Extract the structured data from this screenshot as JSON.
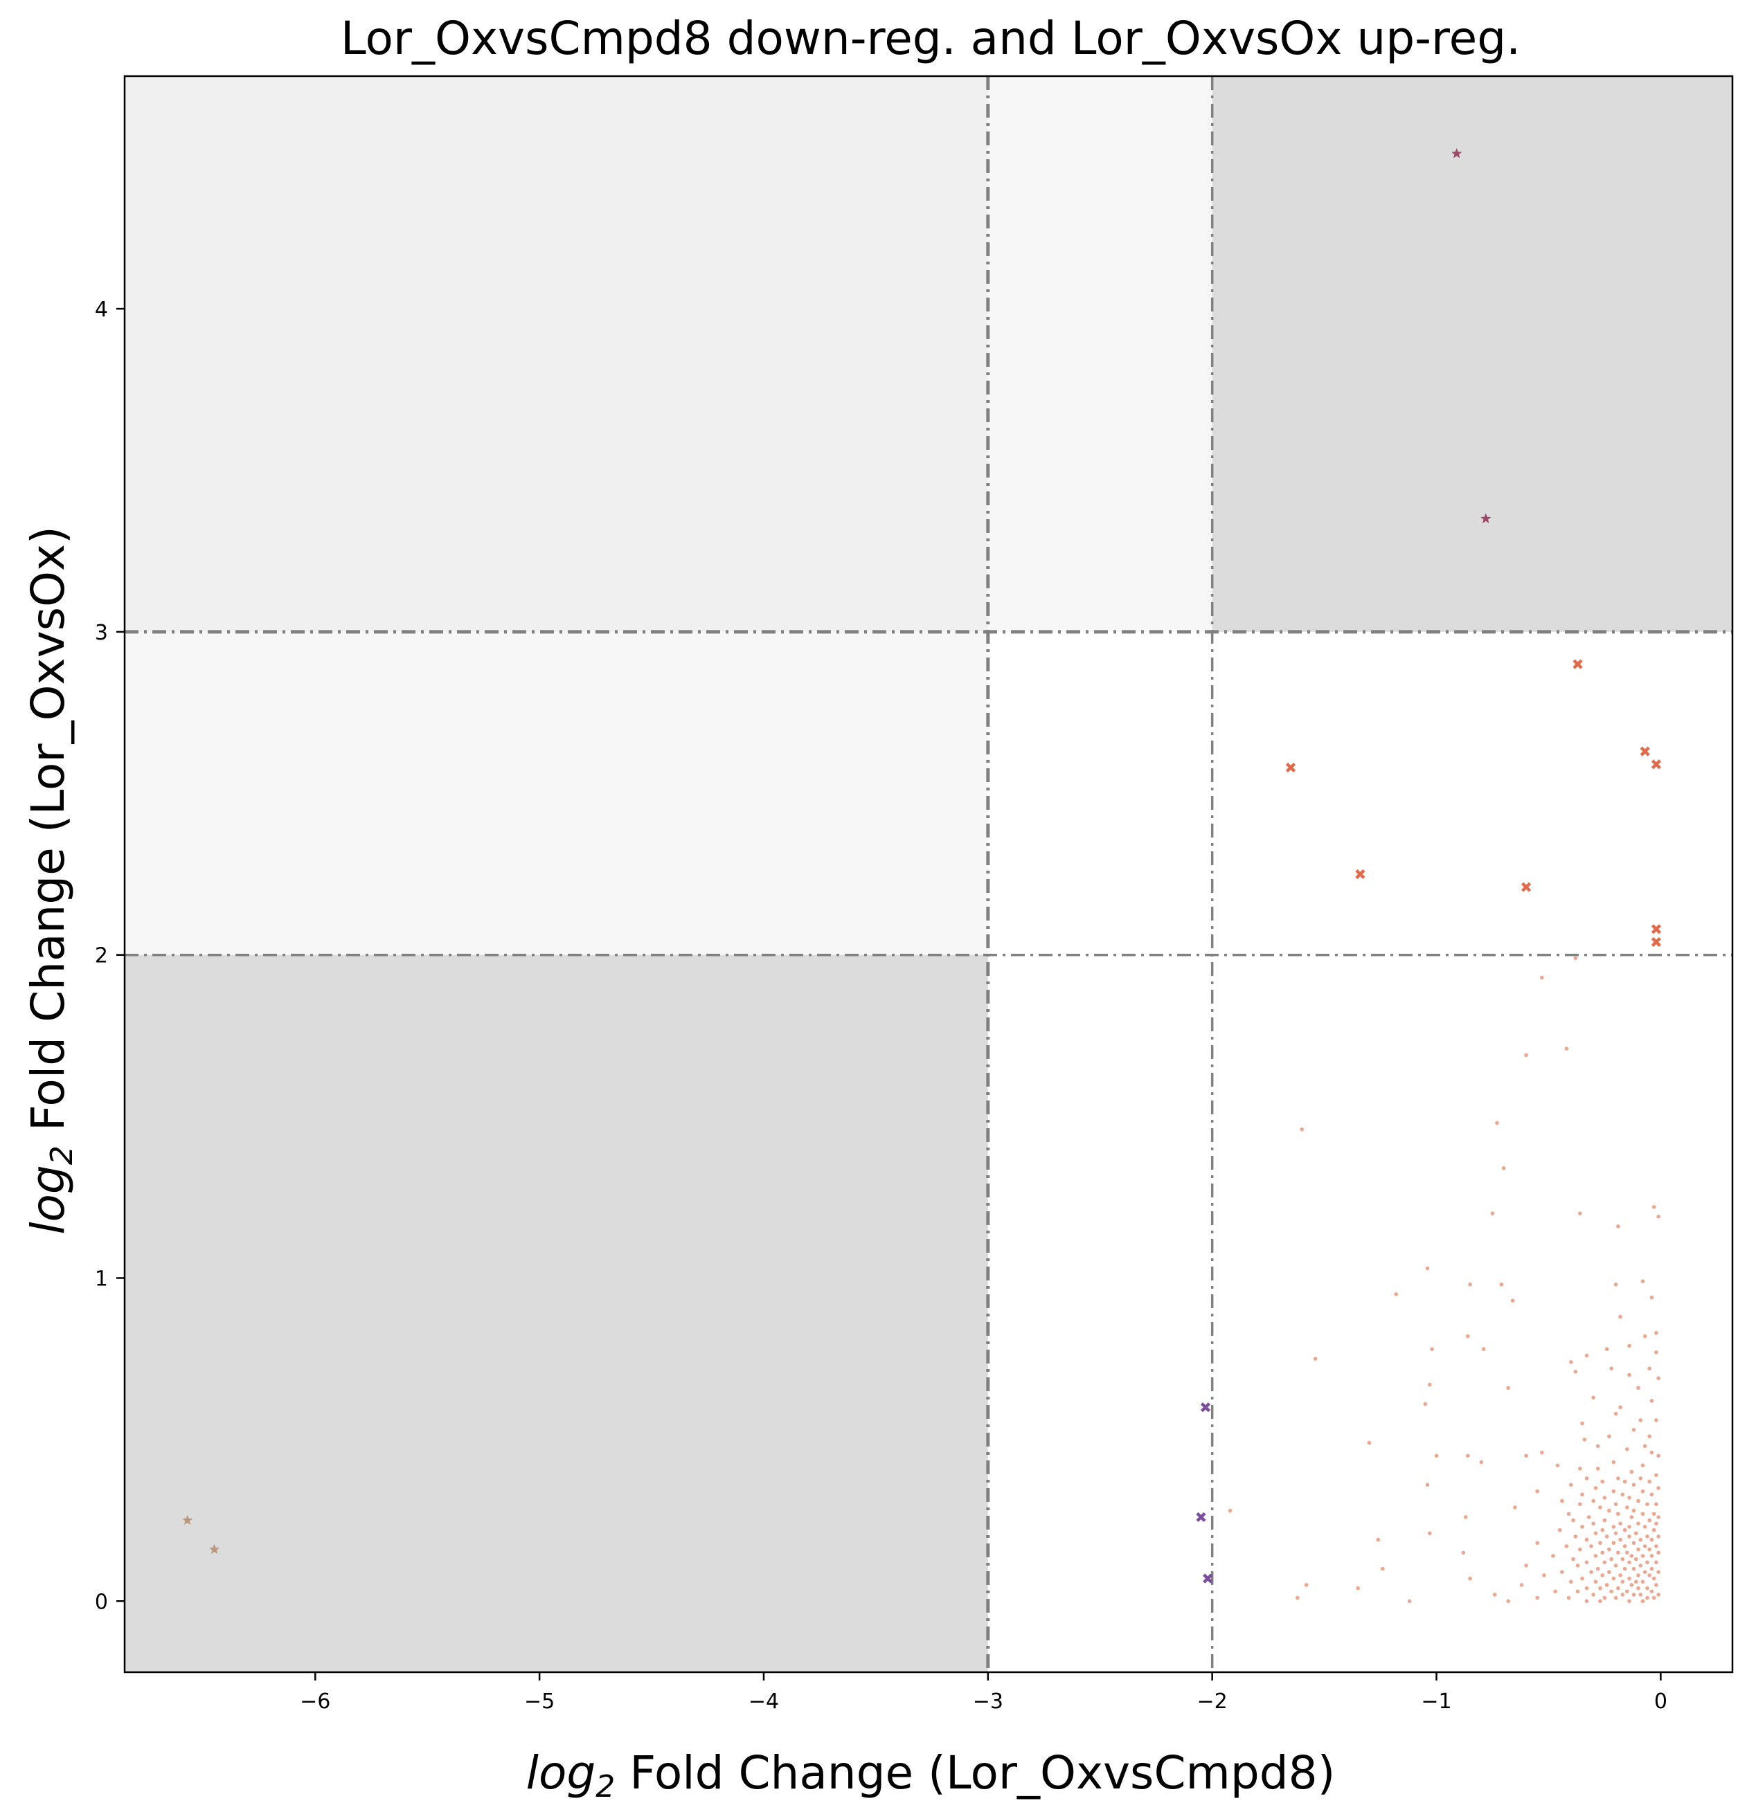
{
  "chart_data": {
    "type": "scatter",
    "title": "Lor_OxvsCmpd8 down-reg. and Lor_OxvsOx up-reg.",
    "xlabel": {
      "italic": "log",
      "sub": "2",
      "rest": " Fold Change (Lor_OxvsCmpd8)"
    },
    "ylabel": {
      "italic": "log",
      "sub": "2",
      "rest": " Fold Change (Lor_OxvsOx)"
    },
    "xlim": [
      -6.85,
      0.32
    ],
    "ylim": [
      -0.22,
      4.72
    ],
    "xticks": [
      -6,
      -5,
      -4,
      -3,
      -2,
      -1,
      0
    ],
    "xtick_labels": [
      "−6",
      "−5",
      "−4",
      "−3",
      "−2",
      "−1",
      "0"
    ],
    "yticks": [
      0,
      1,
      2,
      3,
      4
    ],
    "ytick_labels": [
      "0",
      "1",
      "2",
      "3",
      "4"
    ],
    "thresholds": {
      "x": [
        -3,
        -2
      ],
      "y": [
        2,
        3
      ]
    },
    "regions": [
      {
        "x": [
          -6.85,
          -3
        ],
        "y": [
          3,
          4.72
        ],
        "color": "#f0f0f0"
      },
      {
        "x": [
          -3,
          -2
        ],
        "y": [
          3,
          4.72
        ],
        "color": "#f7f7f7"
      },
      {
        "x": [
          -2,
          0.32
        ],
        "y": [
          3,
          4.72
        ],
        "color": "#dcdcdc"
      },
      {
        "x": [
          -6.85,
          -3
        ],
        "y": [
          2,
          3
        ],
        "color": "#f7f7f7"
      },
      {
        "x": [
          -6.85,
          -3
        ],
        "y": [
          -0.22,
          2
        ],
        "color": "#dcdcdc"
      }
    ],
    "grid": false,
    "series": [
      {
        "marker": "star",
        "color": "#9c4868",
        "points": [
          [
            -0.91,
            4.48
          ],
          [
            -0.78,
            3.35
          ]
        ]
      },
      {
        "marker": "x",
        "color": "#e2694a",
        "points": [
          [
            -0.37,
            2.9
          ],
          [
            -1.65,
            2.58
          ],
          [
            -0.07,
            2.63
          ],
          [
            -0.02,
            2.59
          ],
          [
            -1.34,
            2.25
          ],
          [
            -0.6,
            2.21
          ],
          [
            -0.02,
            2.08
          ],
          [
            -0.02,
            2.04
          ]
        ]
      },
      {
        "marker": "x",
        "color": "#7a4e9c",
        "points": [
          [
            -2.03,
            0.6
          ],
          [
            -2.05,
            0.26
          ],
          [
            -2.02,
            0.07
          ]
        ]
      },
      {
        "marker": "star",
        "color": "#b89880",
        "points": [
          [
            -6.57,
            0.25
          ],
          [
            -6.45,
            0.16
          ]
        ]
      },
      {
        "marker": "dot",
        "color": "#e58a6c",
        "points": [
          [
            -0.38,
            1.99
          ],
          [
            -0.53,
            1.93
          ],
          [
            -0.42,
            1.71
          ],
          [
            -0.6,
            1.69
          ],
          [
            -1.6,
            1.46
          ],
          [
            -0.73,
            1.48
          ],
          [
            -0.7,
            1.34
          ],
          [
            -0.75,
            1.2
          ],
          [
            -0.36,
            1.2
          ],
          [
            -0.03,
            1.22
          ],
          [
            -0.01,
            1.19
          ],
          [
            -0.19,
            1.16
          ],
          [
            -1.04,
            1.03
          ],
          [
            -0.85,
            0.98
          ],
          [
            -0.71,
            0.98
          ],
          [
            -0.08,
            0.99
          ],
          [
            -0.2,
            0.98
          ],
          [
            -1.18,
            0.95
          ],
          [
            -0.66,
            0.93
          ],
          [
            -0.04,
            0.94
          ],
          [
            -0.18,
            0.88
          ],
          [
            -0.86,
            0.82
          ],
          [
            -0.07,
            0.82
          ],
          [
            -0.02,
            0.83
          ],
          [
            -1.02,
            0.78
          ],
          [
            -0.79,
            0.78
          ],
          [
            -0.14,
            0.79
          ],
          [
            -0.24,
            0.78
          ],
          [
            -0.02,
            0.77
          ],
          [
            -0.33,
            0.76
          ],
          [
            -1.54,
            0.75
          ],
          [
            -0.4,
            0.74
          ],
          [
            -0.05,
            0.72
          ],
          [
            -0.22,
            0.72
          ],
          [
            -0.38,
            0.71
          ],
          [
            -0.14,
            0.7
          ],
          [
            -0.01,
            0.69
          ],
          [
            -1.03,
            0.67
          ],
          [
            -0.1,
            0.66
          ],
          [
            -0.68,
            0.66
          ],
          [
            -0.3,
            0.63
          ],
          [
            -0.04,
            0.62
          ],
          [
            -1.05,
            0.61
          ],
          [
            -0.18,
            0.6
          ],
          [
            -0.2,
            0.58
          ],
          [
            -0.35,
            0.55
          ],
          [
            -0.09,
            0.56
          ],
          [
            -0.02,
            0.56
          ],
          [
            -0.12,
            0.53
          ],
          [
            -0.23,
            0.51
          ],
          [
            -0.05,
            0.51
          ],
          [
            -0.34,
            0.5
          ],
          [
            -1.3,
            0.49
          ],
          [
            -0.28,
            0.48
          ],
          [
            -0.07,
            0.48
          ],
          [
            -0.15,
            0.47
          ],
          [
            -0.53,
            0.46
          ],
          [
            -0.04,
            0.46
          ],
          [
            -0.01,
            0.45
          ],
          [
            -1.0,
            0.45
          ],
          [
            -0.86,
            0.45
          ],
          [
            -0.6,
            0.45
          ],
          [
            -0.8,
            0.43
          ],
          [
            -0.21,
            0.43
          ],
          [
            -0.08,
            0.42
          ],
          [
            -0.28,
            0.41
          ],
          [
            -0.36,
            0.41
          ],
          [
            -0.46,
            0.42
          ],
          [
            -0.13,
            0.4
          ],
          [
            -0.02,
            0.39
          ],
          [
            -0.19,
            0.38
          ],
          [
            -0.33,
            0.38
          ],
          [
            -0.09,
            0.38
          ],
          [
            -0.16,
            0.37
          ],
          [
            -0.26,
            0.37
          ],
          [
            -0.05,
            0.37
          ],
          [
            -1.04,
            0.36
          ],
          [
            -0.4,
            0.36
          ],
          [
            -0.12,
            0.36
          ],
          [
            -0.29,
            0.35
          ],
          [
            -0.01,
            0.35
          ],
          [
            -0.21,
            0.34
          ],
          [
            -0.55,
            0.34
          ],
          [
            -0.08,
            0.34
          ],
          [
            -0.35,
            0.33
          ],
          [
            -0.17,
            0.33
          ],
          [
            -0.04,
            0.33
          ],
          [
            -0.25,
            0.32
          ],
          [
            -0.14,
            0.32
          ],
          [
            -0.3,
            0.31
          ],
          [
            -0.44,
            0.31
          ],
          [
            -0.1,
            0.31
          ],
          [
            -0.02,
            0.3
          ],
          [
            -0.2,
            0.3
          ],
          [
            -0.36,
            0.3
          ],
          [
            -0.06,
            0.3
          ],
          [
            -0.27,
            0.29
          ],
          [
            -0.65,
            0.29
          ],
          [
            -0.15,
            0.29
          ],
          [
            -1.92,
            0.28
          ],
          [
            -0.12,
            0.28
          ],
          [
            -0.23,
            0.28
          ],
          [
            -0.41,
            0.27
          ],
          [
            -0.03,
            0.27
          ],
          [
            -0.08,
            0.27
          ],
          [
            -0.19,
            0.27
          ],
          [
            -0.32,
            0.26
          ],
          [
            -0.87,
            0.26
          ],
          [
            -0.13,
            0.26
          ],
          [
            -0.01,
            0.26
          ],
          [
            -0.25,
            0.25
          ],
          [
            -0.05,
            0.25
          ],
          [
            -0.39,
            0.25
          ],
          [
            -0.18,
            0.24
          ],
          [
            -0.1,
            0.24
          ],
          [
            -0.3,
            0.24
          ],
          [
            -0.02,
            0.24
          ],
          [
            -0.21,
            0.23
          ],
          [
            -0.14,
            0.23
          ],
          [
            -0.35,
            0.23
          ],
          [
            -0.07,
            0.23
          ],
          [
            -0.26,
            0.22
          ],
          [
            -0.45,
            0.22
          ],
          [
            -0.16,
            0.22
          ],
          [
            -0.03,
            0.22
          ],
          [
            -0.11,
            0.21
          ],
          [
            -1.03,
            0.21
          ],
          [
            -0.2,
            0.21
          ],
          [
            -0.29,
            0.21
          ],
          [
            -0.06,
            0.2
          ],
          [
            -0.38,
            0.2
          ],
          [
            -0.14,
            0.2
          ],
          [
            -0.24,
            0.2
          ],
          [
            -0.01,
            0.2
          ],
          [
            -0.09,
            0.19
          ],
          [
            -0.18,
            0.19
          ],
          [
            -1.26,
            0.19
          ],
          [
            -0.33,
            0.19
          ],
          [
            -0.04,
            0.19
          ],
          [
            -0.27,
            0.18
          ],
          [
            -0.12,
            0.18
          ],
          [
            -0.21,
            0.18
          ],
          [
            -0.55,
            0.18
          ],
          [
            -0.07,
            0.17
          ],
          [
            -0.16,
            0.17
          ],
          [
            -0.42,
            0.17
          ],
          [
            -0.02,
            0.17
          ],
          [
            -0.31,
            0.17
          ],
          [
            -0.1,
            0.16
          ],
          [
            -0.23,
            0.16
          ],
          [
            -0.05,
            0.16
          ],
          [
            -0.36,
            0.16
          ],
          [
            -0.15,
            0.15
          ],
          [
            -0.88,
            0.15
          ],
          [
            -0.26,
            0.15
          ],
          [
            -0.01,
            0.15
          ],
          [
            -0.19,
            0.15
          ],
          [
            -0.08,
            0.14
          ],
          [
            -0.48,
            0.14
          ],
          [
            -0.13,
            0.14
          ],
          [
            -0.29,
            0.14
          ],
          [
            -0.04,
            0.14
          ],
          [
            -0.22,
            0.13
          ],
          [
            -0.39,
            0.13
          ],
          [
            -0.11,
            0.13
          ],
          [
            -0.17,
            0.13
          ],
          [
            -0.06,
            0.12
          ],
          [
            -0.33,
            0.12
          ],
          [
            -0.25,
            0.12
          ],
          [
            -0.02,
            0.12
          ],
          [
            -0.14,
            0.12
          ],
          [
            -0.6,
            0.11
          ],
          [
            -0.2,
            0.11
          ],
          [
            -0.09,
            0.11
          ],
          [
            -0.37,
            0.11
          ],
          [
            -0.28,
            0.1
          ],
          [
            -0.04,
            0.1
          ],
          [
            -0.16,
            0.1
          ],
          [
            -1.24,
            0.1
          ],
          [
            -0.12,
            0.1
          ],
          [
            -0.23,
            0.09
          ],
          [
            -0.44,
            0.09
          ],
          [
            -0.07,
            0.09
          ],
          [
            -0.31,
            0.09
          ],
          [
            -0.01,
            0.09
          ],
          [
            -0.18,
            0.08
          ],
          [
            -0.1,
            0.08
          ],
          [
            -0.52,
            0.08
          ],
          [
            -0.26,
            0.08
          ],
          [
            -0.05,
            0.08
          ],
          [
            -0.14,
            0.07
          ],
          [
            -0.35,
            0.07
          ],
          [
            -0.21,
            0.07
          ],
          [
            -0.03,
            0.07
          ],
          [
            -0.85,
            0.07
          ],
          [
            -0.11,
            0.06
          ],
          [
            -0.29,
            0.06
          ],
          [
            -0.08,
            0.06
          ],
          [
            -0.17,
            0.06
          ],
          [
            -0.4,
            0.06
          ],
          [
            -1.58,
            0.05
          ],
          [
            -0.24,
            0.05
          ],
          [
            -0.02,
            0.05
          ],
          [
            -0.13,
            0.05
          ],
          [
            -0.62,
            0.05
          ],
          [
            -0.33,
            0.04
          ],
          [
            -0.06,
            0.04
          ],
          [
            -0.19,
            0.04
          ],
          [
            -0.1,
            0.04
          ],
          [
            -0.27,
            0.04
          ],
          [
            -1.35,
            0.04
          ],
          [
            -0.47,
            0.03
          ],
          [
            -0.15,
            0.03
          ],
          [
            -0.04,
            0.03
          ],
          [
            -0.22,
            0.03
          ],
          [
            -0.37,
            0.03
          ],
          [
            -0.09,
            0.02
          ],
          [
            -0.3,
            0.02
          ],
          [
            -0.01,
            0.02
          ],
          [
            -0.17,
            0.02
          ],
          [
            -0.74,
            0.02
          ],
          [
            -0.12,
            0.02
          ],
          [
            -0.25,
            0.01
          ],
          [
            -0.55,
            0.01
          ],
          [
            -0.06,
            0.01
          ],
          [
            -0.41,
            0.01
          ],
          [
            -0.2,
            0.01
          ],
          [
            -1.62,
            0.01
          ],
          [
            -0.03,
            0.01
          ],
          [
            -0.33,
            0.0
          ],
          [
            -1.12,
            0.0
          ],
          [
            -0.14,
            0.0
          ],
          [
            -0.68,
            0.0
          ],
          [
            -0.27,
            0.0
          ],
          [
            -0.08,
            0.0
          ]
        ]
      }
    ]
  }
}
